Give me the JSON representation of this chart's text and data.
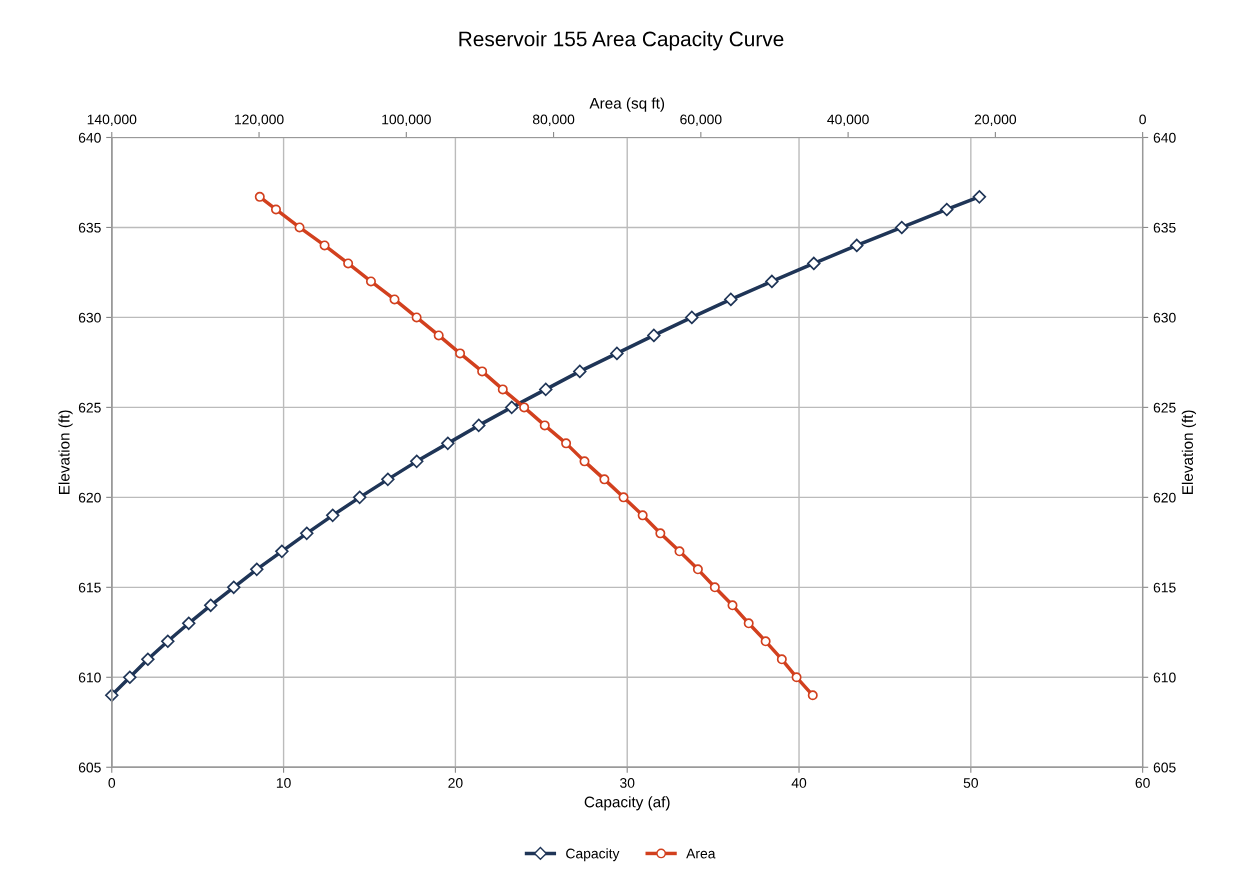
{
  "chart_data": {
    "type": "line",
    "title": "Reservoir 155 Area Capacity Curve",
    "xlabel": "Capacity (af)",
    "x2label": "Area (sq ft)",
    "ylabel": "Elevation (ft)",
    "y2label": "Elevation (ft)",
    "xlim": [
      0,
      60
    ],
    "xticks": [
      0,
      10,
      20,
      30,
      40,
      50,
      60
    ],
    "x2lim": [
      140000,
      0
    ],
    "x2ticks": [
      {
        "value": 140000,
        "label": "140,000"
      },
      {
        "value": 120000,
        "label": "120,000"
      },
      {
        "value": 100000,
        "label": "100,000"
      },
      {
        "value": 80000,
        "label": "80,000"
      },
      {
        "value": 60000,
        "label": "60,000"
      },
      {
        "value": 40000,
        "label": "40,000"
      },
      {
        "value": 20000,
        "label": "20,000"
      },
      0
    ],
    "ylim": [
      605,
      640
    ],
    "yticks": [
      605,
      610,
      615,
      620,
      625,
      630,
      635,
      640
    ],
    "y2lim": [
      605,
      640
    ],
    "y2ticks": [
      605,
      610,
      615,
      620,
      625,
      630,
      635,
      640
    ],
    "grid": true,
    "legend": "bottom",
    "line_style": "solid",
    "series": [
      {
        "name": "Capacity",
        "color": "#1f3557",
        "marker": "diamond",
        "x": [
          0,
          1.05,
          2.1,
          3.26,
          4.48,
          5.76,
          7.1,
          8.44,
          9.9,
          11.35,
          12.86,
          14.43,
          16.07,
          17.75,
          19.56,
          21.36,
          23.28,
          25.26,
          27.24,
          29.4,
          31.55,
          33.76,
          36.03,
          38.42,
          40.86,
          43.36,
          45.98,
          48.6,
          50.5
        ],
        "values": [
          609,
          610,
          611,
          612,
          613,
          614,
          615,
          616,
          617,
          618,
          619,
          620,
          621,
          622,
          623,
          624,
          625,
          626,
          627,
          628,
          629,
          630,
          631,
          632,
          633,
          634,
          635,
          636,
          636.7
        ]
      },
      {
        "name": "Area",
        "color": "#d2401e",
        "marker": "circle",
        "axis": "x2",
        "x": [
          44800,
          47000,
          49000,
          51200,
          53500,
          55700,
          58100,
          60400,
          62900,
          65500,
          67900,
          70500,
          73100,
          75800,
          78300,
          81200,
          84000,
          86900,
          89700,
          92700,
          95600,
          98600,
          101600,
          104800,
          107900,
          111100,
          114500,
          117700,
          119900
        ],
        "values": [
          609,
          610,
          611,
          612,
          613,
          614,
          615,
          616,
          617,
          618,
          619,
          620,
          621,
          622,
          623,
          624,
          625,
          626,
          627,
          628,
          629,
          630,
          631,
          632,
          633,
          634,
          635,
          636,
          636.7
        ]
      }
    ]
  }
}
